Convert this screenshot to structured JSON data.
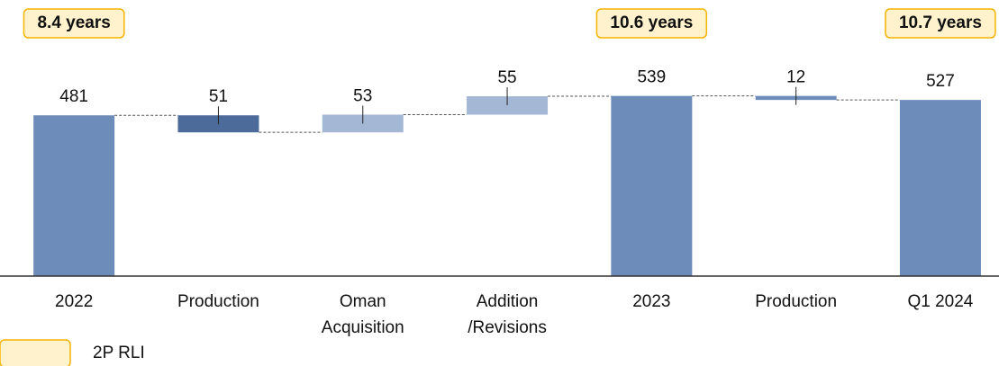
{
  "chart_data": {
    "type": "waterfall",
    "categories": [
      "2022",
      "Production",
      "Oman\nAcquisition",
      "Addition\n/Revisions",
      "2023",
      "Production",
      "Q1 2024"
    ],
    "values": [
      481,
      51,
      53,
      55,
      539,
      12,
      527
    ],
    "steps": [
      "total",
      "decrease",
      "increase",
      "increase",
      "total",
      "decrease",
      "total"
    ],
    "colors": [
      "#6e8cb9",
      "#4c6b9b",
      "#a4b7d4",
      "#a4b7d4",
      "#6e8cb9",
      "#6e8cb9",
      "#6e8cb9"
    ],
    "ylim": [
      0,
      600
    ],
    "annotations": [
      "8.4 years",
      "10.6 years",
      "10.7 years"
    ],
    "legend": {
      "label": "2P RLI",
      "fill": "#fff2cc",
      "border": "#f5b400"
    }
  }
}
